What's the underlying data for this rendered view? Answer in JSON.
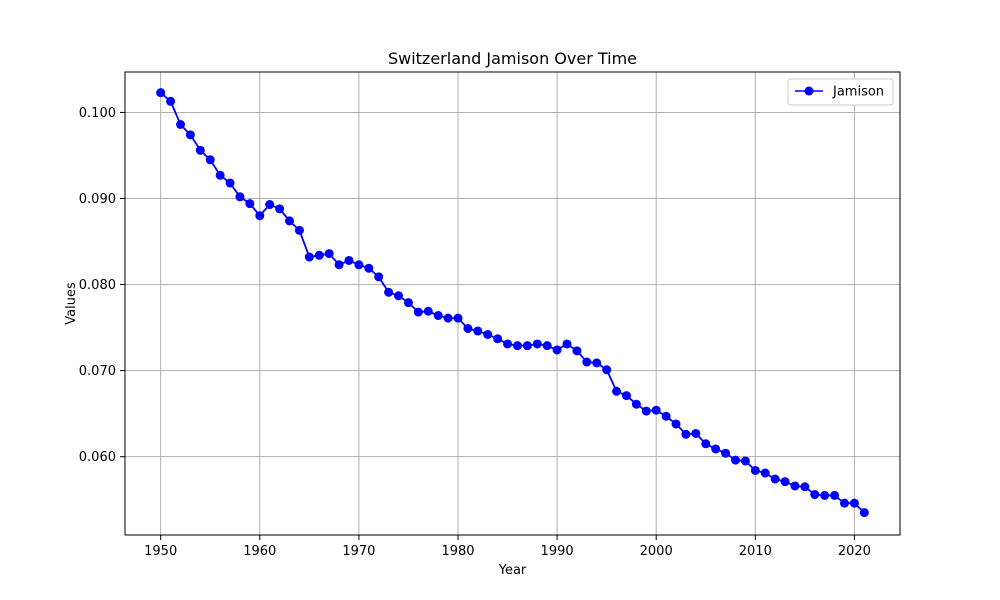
{
  "chart_data": {
    "type": "line",
    "title": "Switzerland Jamison Over Time",
    "xlabel": "Year",
    "ylabel": "Values",
    "xlim": [
      1946.4,
      2024.6
    ],
    "ylim": [
      0.0509,
      0.1047
    ],
    "xticks": [
      1950,
      1960,
      1970,
      1980,
      1990,
      2000,
      2010,
      2020
    ],
    "yticks": [
      0.06,
      0.07,
      0.08,
      0.09,
      0.1
    ],
    "ytick_labels": [
      "0.060",
      "0.070",
      "0.080",
      "0.090",
      "0.100"
    ],
    "grid": true,
    "legend_position": "upper-right",
    "series": [
      {
        "name": "Jamison",
        "color": "#0000ff",
        "marker": "circle",
        "x": [
          1950,
          1951,
          1952,
          1953,
          1954,
          1955,
          1956,
          1957,
          1958,
          1959,
          1960,
          1961,
          1962,
          1963,
          1964,
          1965,
          1966,
          1967,
          1968,
          1969,
          1970,
          1971,
          1972,
          1973,
          1974,
          1975,
          1976,
          1977,
          1978,
          1979,
          1980,
          1981,
          1982,
          1983,
          1984,
          1985,
          1986,
          1987,
          1988,
          1989,
          1990,
          1991,
          1992,
          1993,
          1994,
          1995,
          1996,
          1997,
          1998,
          1999,
          2000,
          2001,
          2002,
          2003,
          2004,
          2005,
          2006,
          2007,
          2008,
          2009,
          2010,
          2011,
          2012,
          2013,
          2014,
          2015,
          2016,
          2017,
          2018,
          2019,
          2020,
          2021
        ],
        "y": [
          0.1023,
          0.1013,
          0.0986,
          0.0974,
          0.0956,
          0.0945,
          0.0927,
          0.0918,
          0.0902,
          0.0894,
          0.088,
          0.0893,
          0.0888,
          0.0874,
          0.0863,
          0.0832,
          0.0834,
          0.0836,
          0.0823,
          0.0828,
          0.0823,
          0.0819,
          0.0809,
          0.0791,
          0.0787,
          0.0779,
          0.0768,
          0.0769,
          0.0764,
          0.0761,
          0.0761,
          0.0749,
          0.0746,
          0.0742,
          0.0737,
          0.0731,
          0.0729,
          0.0729,
          0.0731,
          0.0729,
          0.0724,
          0.0731,
          0.0723,
          0.071,
          0.0709,
          0.0701,
          0.0676,
          0.0671,
          0.0661,
          0.0653,
          0.0654,
          0.0647,
          0.0638,
          0.0626,
          0.0627,
          0.0615,
          0.0609,
          0.0604,
          0.0596,
          0.0595,
          0.0584,
          0.0581,
          0.0574,
          0.0571,
          0.0566,
          0.0565,
          0.0556,
          0.0555,
          0.0555,
          0.0546,
          0.0546,
          0.0535
        ]
      }
    ]
  }
}
